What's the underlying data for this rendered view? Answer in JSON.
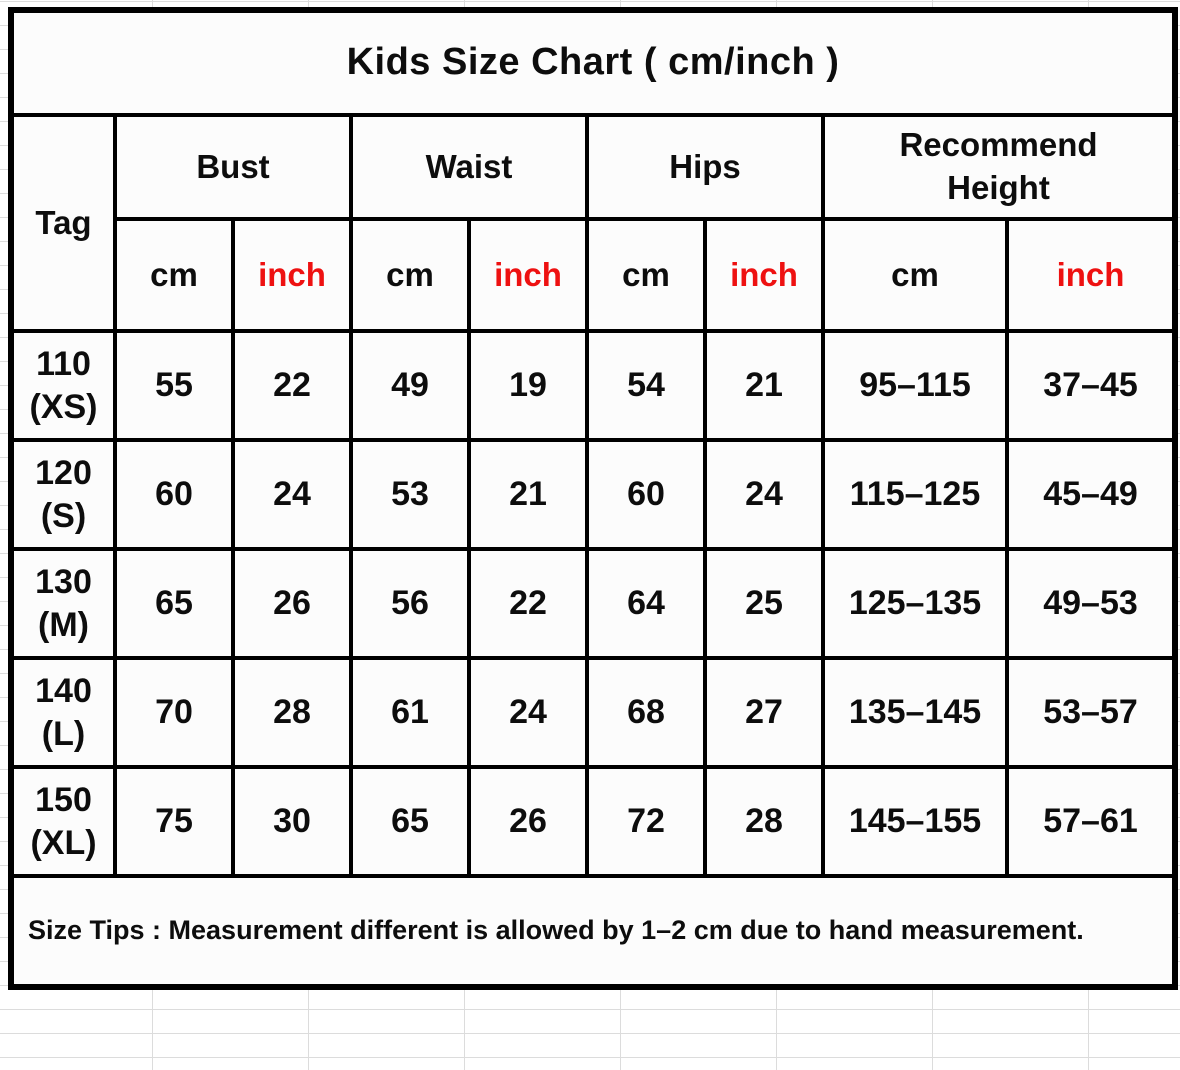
{
  "title": "Kids Size Chart ( cm/inch )",
  "table": {
    "tag_header": "Tag",
    "groups": {
      "bust": "Bust",
      "waist": "Waist",
      "hips": "Hips",
      "recommend_height": "Recommend\nHeight"
    },
    "units": {
      "cm": "cm",
      "inch": "inch"
    },
    "rows": [
      {
        "tag_size": "110",
        "tag_label": "(XS)",
        "bust_cm": "55",
        "bust_inch": "22",
        "waist_cm": "49",
        "waist_inch": "19",
        "hips_cm": "54",
        "hips_inch": "21",
        "height_cm": "95–115",
        "height_inch": "37–45"
      },
      {
        "tag_size": "120",
        "tag_label": "(S)",
        "bust_cm": "60",
        "bust_inch": "24",
        "waist_cm": "53",
        "waist_inch": "21",
        "hips_cm": "60",
        "hips_inch": "24",
        "height_cm": "115–125",
        "height_inch": "45–49"
      },
      {
        "tag_size": "130",
        "tag_label": "(M)",
        "bust_cm": "65",
        "bust_inch": "26",
        "waist_cm": "56",
        "waist_inch": "22",
        "hips_cm": "64",
        "hips_inch": "25",
        "height_cm": "125–135",
        "height_inch": "49–53"
      },
      {
        "tag_size": "140",
        "tag_label": "(L)",
        "bust_cm": "70",
        "bust_inch": "28",
        "waist_cm": "61",
        "waist_inch": "24",
        "hips_cm": "68",
        "hips_inch": "27",
        "height_cm": "135–145",
        "height_inch": "53–57"
      },
      {
        "tag_size": "150",
        "tag_label": "(XL)",
        "bust_cm": "75",
        "bust_inch": "30",
        "waist_cm": "65",
        "waist_inch": "26",
        "hips_cm": "72",
        "hips_inch": "28",
        "height_cm": "145–155",
        "height_inch": "57–61"
      }
    ],
    "size_tips": "Size Tips : Measurement different is allowed by 1–2 cm due to hand measurement."
  },
  "colors": {
    "inch_red": "#ee1111",
    "border_black": "#000000",
    "cell_background": "#fcfcfc"
  },
  "chart_data": {
    "type": "table",
    "title": "Kids Size Chart ( cm/inch )",
    "column_groups": [
      "Tag",
      "Bust",
      "Waist",
      "Hips",
      "Recommend Height"
    ],
    "columns": [
      "Tag",
      "Bust cm",
      "Bust inch",
      "Waist cm",
      "Waist inch",
      "Hips cm",
      "Hips inch",
      "Recommend Height cm",
      "Recommend Height inch"
    ],
    "rows": [
      [
        "110 (XS)",
        55,
        22,
        49,
        19,
        54,
        21,
        "95–115",
        "37–45"
      ],
      [
        "120 (S)",
        60,
        24,
        53,
        21,
        60,
        24,
        "115–125",
        "45–49"
      ],
      [
        "130 (M)",
        65,
        26,
        56,
        22,
        64,
        25,
        "125–135",
        "49–53"
      ],
      [
        "140 (L)",
        70,
        28,
        61,
        24,
        68,
        27,
        "135–145",
        "53–57"
      ],
      [
        "150 (XL)",
        75,
        30,
        65,
        26,
        72,
        28,
        "145–155",
        "57–61"
      ]
    ],
    "footnote": "Size Tips : Measurement different is allowed by 1–2 cm due to hand measurement."
  }
}
